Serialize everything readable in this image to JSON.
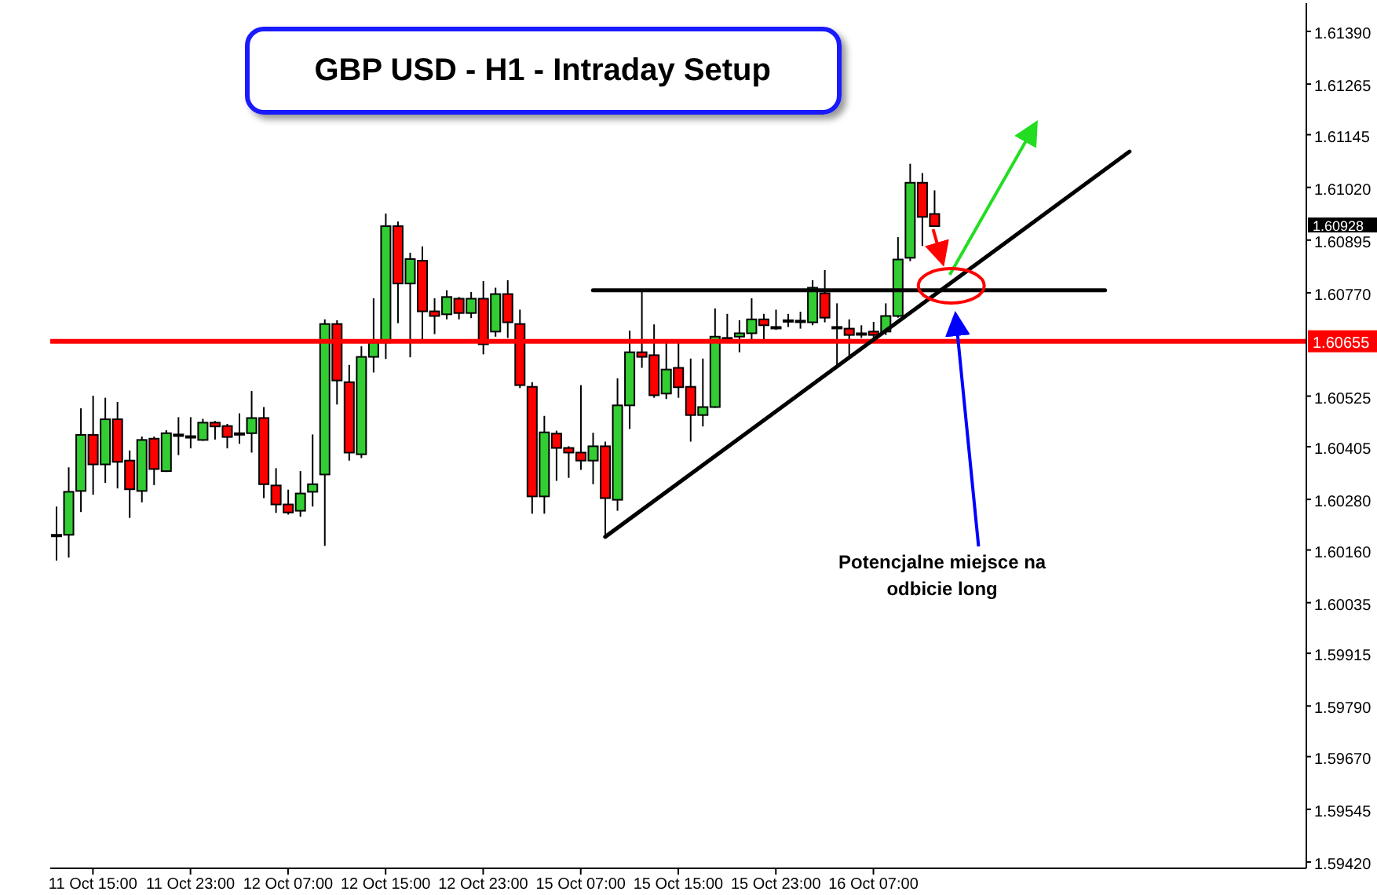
{
  "chart_data": {
    "type": "candlestick",
    "title": "GBP USD - H1 - Intraday Setup",
    "categories": [
      null,
      null,
      null,
      "11 Oct 15:00",
      null,
      null,
      null,
      null,
      null,
      null,
      null,
      "11 Oct 23:00",
      null,
      null,
      null,
      null,
      null,
      null,
      null,
      "12 Oct 07:00",
      null,
      null,
      null,
      null,
      null,
      null,
      null,
      "12 Oct 15:00",
      null,
      null,
      null,
      null,
      null,
      null,
      null,
      "12 Oct 23:00",
      null,
      null,
      null,
      null,
      null,
      null,
      null,
      "15 Oct 07:00",
      null,
      null,
      null,
      null,
      null,
      null,
      null,
      "15 Oct 15:00",
      null,
      null,
      null,
      null,
      null,
      null,
      null,
      "15 Oct 23:00",
      null,
      null,
      null,
      null,
      null,
      null,
      null,
      "16 Oct 07:00",
      null,
      null,
      null,
      null,
      null,
      null,
      null,
      null,
      null,
      null,
      null,
      null,
      null,
      null,
      null,
      null,
      null,
      null,
      null,
      null,
      null,
      null,
      null,
      null,
      null,
      null,
      null,
      null,
      null,
      null,
      null,
      null,
      null,
      null,
      null
    ],
    "ohlc": [
      [
        1.60196,
        1.60263,
        1.60135,
        1.60196
      ],
      [
        1.60196,
        1.60356,
        1.60142,
        1.60298
      ],
      [
        1.603,
        1.60496,
        1.6025,
        1.60433
      ],
      [
        1.60433,
        1.60526,
        1.60291,
        1.60363
      ],
      [
        1.60363,
        1.60521,
        1.60319,
        1.6047
      ],
      [
        1.6047,
        1.60511,
        1.60306,
        1.60369
      ],
      [
        1.60372,
        1.60396,
        1.60236,
        1.60304
      ],
      [
        1.603,
        1.60429,
        1.60273,
        1.60421
      ],
      [
        1.60424,
        1.60429,
        1.60314,
        1.60352
      ],
      [
        1.60347,
        1.60444,
        1.60345,
        1.60437
      ],
      [
        1.60434,
        1.60475,
        1.60385,
        1.60434
      ],
      [
        1.6043,
        1.60475,
        1.60401,
        1.6043
      ],
      [
        1.60421,
        1.60471,
        1.60419,
        1.60462
      ],
      [
        1.60462,
        1.60466,
        1.60422,
        1.60453
      ],
      [
        1.60454,
        1.60459,
        1.60401,
        1.60428
      ],
      [
        1.60437,
        1.60484,
        1.60412,
        1.60437
      ],
      [
        1.60437,
        1.60537,
        1.60391,
        1.60473
      ],
      [
        1.60473,
        1.60499,
        1.60283,
        1.60316
      ],
      [
        1.60313,
        1.60354,
        1.60248,
        1.60268
      ],
      [
        1.60268,
        1.60303,
        1.60244,
        1.60249
      ],
      [
        1.60253,
        1.60347,
        1.60239,
        1.60294
      ],
      [
        1.60298,
        1.60434,
        1.60263,
        1.60316
      ],
      [
        1.60339,
        1.60707,
        1.6017,
        1.60696
      ],
      [
        1.60696,
        1.60705,
        1.60505,
        1.60562
      ],
      [
        1.60558,
        1.60599,
        1.60372,
        1.60391
      ],
      [
        1.60387,
        1.60643,
        1.60378,
        1.60618
      ],
      [
        1.60618,
        1.60757,
        1.60581,
        1.60652
      ],
      [
        1.60652,
        1.60958,
        1.60613,
        1.60928
      ],
      [
        1.60928,
        1.60939,
        1.60698,
        1.60792
      ],
      [
        1.60792,
        1.60865,
        1.60617,
        1.6085
      ],
      [
        1.60846,
        1.6088,
        1.60652,
        1.60726
      ],
      [
        1.60726,
        1.60757,
        1.60672,
        1.60715
      ],
      [
        1.60719,
        1.60776,
        1.60707,
        1.6076
      ],
      [
        1.60756,
        1.6076,
        1.60707,
        1.60722
      ],
      [
        1.60722,
        1.60772,
        1.6071,
        1.60756
      ],
      [
        1.60756,
        1.60798,
        1.60624,
        1.60648
      ],
      [
        1.60678,
        1.60782,
        1.60666,
        1.60767
      ],
      [
        1.60767,
        1.608,
        1.60663,
        1.607
      ],
      [
        1.60696,
        1.6073,
        1.60544,
        1.60551
      ],
      [
        1.60547,
        1.60558,
        1.60246,
        1.60287
      ],
      [
        1.60287,
        1.60478,
        1.60246,
        1.60439
      ],
      [
        1.60436,
        1.60443,
        1.60324,
        1.60402
      ],
      [
        1.60402,
        1.60406,
        1.60331,
        1.60391
      ],
      [
        1.60391,
        1.60551,
        1.6035,
        1.60372
      ],
      [
        1.60372,
        1.60438,
        1.60316,
        1.60406
      ],
      [
        1.60406,
        1.60417,
        1.6019,
        1.60283
      ],
      [
        1.60279,
        1.60567,
        1.60253,
        1.60503
      ],
      [
        1.60503,
        1.6068,
        1.60447,
        1.60629
      ],
      [
        1.60629,
        1.60773,
        1.60592,
        1.60618
      ],
      [
        1.60622,
        1.60695,
        1.60521,
        1.60527
      ],
      [
        1.60531,
        1.60656,
        1.60518,
        1.60588
      ],
      [
        1.60592,
        1.6066,
        1.60521,
        1.60546
      ],
      [
        1.60547,
        1.60614,
        1.60417,
        1.6048
      ],
      [
        1.6048,
        1.60614,
        1.60453,
        1.60499
      ],
      [
        1.60499,
        1.60733,
        1.60497,
        1.60666
      ],
      [
        1.60663,
        1.6072,
        1.60653,
        1.60663
      ],
      [
        1.60666,
        1.60705,
        1.60629,
        1.60674
      ],
      [
        1.60674,
        1.60757,
        1.60658,
        1.60707
      ],
      [
        1.60707,
        1.6072,
        1.60653,
        1.60693
      ],
      [
        1.60689,
        1.6073,
        1.60682,
        1.60689
      ],
      [
        1.60705,
        1.6072,
        1.60689,
        1.60705
      ],
      [
        1.60704,
        1.60725,
        1.60685,
        1.60704
      ],
      [
        1.607,
        1.608,
        1.60693,
        1.60782
      ],
      [
        1.60769,
        1.60824,
        1.607,
        1.60711
      ],
      [
        1.60689,
        1.60745,
        1.60593,
        1.60689
      ],
      [
        1.60685,
        1.60707,
        1.6062,
        1.6067
      ],
      [
        1.60674,
        1.60693,
        1.60663,
        1.60674
      ],
      [
        1.60678,
        1.60701,
        1.60663,
        1.6067
      ],
      [
        1.60678,
        1.60745,
        1.6067,
        1.60715
      ],
      [
        1.60715,
        1.60902,
        1.60711,
        1.60849
      ],
      [
        1.60853,
        1.61076,
        1.60845,
        1.61031
      ],
      [
        1.61031,
        1.61054,
        1.60881,
        1.6095
      ],
      [
        1.60957,
        1.61013,
        1.60928,
        1.60928
      ],
      null,
      null,
      null,
      null,
      null,
      null,
      null,
      null,
      null,
      null,
      null,
      null,
      null,
      null,
      null,
      null,
      null,
      null,
      null,
      null,
      null,
      null,
      null,
      null,
      null,
      null,
      null,
      null,
      null,
      null
    ],
    "colors": [
      "#000000",
      "#32cd32",
      "#32cd32",
      "#ff0000",
      "#32cd32",
      "#ff0000",
      "#ff0000",
      "#32cd32",
      "#ff0000",
      "#32cd32",
      "#000000",
      "#000000",
      "#32cd32",
      "#ff0000",
      "#ff0000",
      "#000000",
      "#32cd32",
      "#ff0000",
      "#ff0000",
      "#ff0000",
      "#32cd32",
      "#32cd32",
      "#32cd32",
      "#ff0000",
      "#ff0000",
      "#32cd32",
      "#32cd32",
      "#32cd32",
      "#ff0000",
      "#32cd32",
      "#ff0000",
      "#ff0000",
      "#32cd32",
      "#ff0000",
      "#32cd32",
      "#ff0000",
      "#32cd32",
      "#ff0000",
      "#ff0000",
      "#ff0000",
      "#32cd32",
      "#ff0000",
      "#ff0000",
      "#ff0000",
      "#32cd32",
      "#ff0000",
      "#32cd32",
      "#32cd32",
      "#ff0000",
      "#ff0000",
      "#32cd32",
      "#ff0000",
      "#ff0000",
      "#32cd32",
      "#32cd32",
      "#000000",
      "#32cd32",
      "#32cd32",
      "#ff0000",
      "#000000",
      "#000000",
      "#000000",
      "#32cd32",
      "#ff0000",
      "#000000",
      "#ff0000",
      "#000000",
      "#ff0000",
      "#32cd32",
      "#32cd32",
      "#32cd32",
      "#ff0000",
      "#ff0000",
      null,
      null,
      null,
      null,
      null,
      null,
      null,
      null,
      null,
      null,
      null,
      null,
      null,
      null,
      null,
      null,
      null,
      null,
      null,
      null,
      null,
      null,
      null,
      null,
      null,
      null,
      null,
      null,
      null,
      null
    ],
    "series": [
      {
        "type": "line",
        "color": "#000000",
        "values": [
          null,
          null,
          null,
          null,
          null,
          null,
          null,
          null,
          null,
          null,
          null,
          null,
          null,
          null,
          null,
          null,
          null,
          null,
          null,
          null,
          null,
          null,
          null,
          null,
          null,
          null,
          null,
          null,
          null,
          null,
          null,
          null,
          null,
          null,
          null,
          null,
          null,
          null,
          null,
          null,
          null,
          null,
          null,
          null,
          null,
          1.60191,
          null,
          null,
          null,
          null,
          null,
          null,
          null,
          null,
          null,
          null,
          null,
          null,
          null,
          null,
          null,
          null,
          null,
          null,
          null,
          null,
          null,
          null,
          null,
          null,
          null,
          null,
          null,
          null,
          null,
          null,
          null,
          null,
          null,
          null,
          null,
          null,
          null,
          null,
          null,
          null,
          null,
          null,
          1.61105,
          null,
          null,
          null,
          null,
          null,
          null,
          null,
          null,
          null,
          null,
          null,
          null,
          null,
          null
        ]
      },
      {
        "type": "line",
        "color": "#000000",
        "values": [
          null,
          null,
          null,
          null,
          null,
          null,
          null,
          null,
          null,
          null,
          null,
          null,
          null,
          null,
          null,
          null,
          null,
          null,
          null,
          null,
          null,
          null,
          null,
          null,
          null,
          null,
          null,
          null,
          null,
          null,
          null,
          null,
          null,
          null,
          null,
          null,
          null,
          null,
          null,
          null,
          null,
          null,
          null,
          null,
          1.60776,
          null,
          null,
          null,
          null,
          null,
          null,
          null,
          null,
          null,
          null,
          null,
          null,
          null,
          null,
          null,
          null,
          null,
          null,
          null,
          null,
          null,
          null,
          null,
          null,
          null,
          null,
          null,
          null,
          null,
          null,
          null,
          null,
          null,
          null,
          null,
          null,
          null,
          null,
          null,
          null,
          null,
          1.60776,
          null,
          null,
          null,
          null,
          null,
          null,
          null,
          null,
          null,
          null,
          null,
          null,
          null,
          null,
          null,
          null
        ]
      }
    ],
    "ylim": [
      1.59405,
      1.61457
    ],
    "yticks": [
      {
        "value": 1.6139,
        "label": "1.61390"
      },
      {
        "value": 1.61265,
        "label": "1.61265"
      },
      {
        "value": 1.61145,
        "label": "1.61145"
      },
      {
        "value": 1.6102,
        "label": "1.61020"
      },
      {
        "value": 1.60895,
        "label": "1.60895"
      },
      {
        "value": 1.6077,
        "label": "1.60770"
      },
      {
        "value": 1.60525,
        "label": "1.60525"
      },
      {
        "value": 1.60405,
        "label": "1.60405"
      },
      {
        "value": 1.6028,
        "label": "1.60280"
      },
      {
        "value": 1.6016,
        "label": "1.60160"
      },
      {
        "value": 1.60035,
        "label": "1.60035"
      },
      {
        "value": 1.59915,
        "label": "1.59915"
      },
      {
        "value": 1.5979,
        "label": "1.59790"
      },
      {
        "value": 1.5967,
        "label": "1.59670"
      },
      {
        "value": 1.59545,
        "label": "1.59545"
      },
      {
        "value": 1.5942,
        "label": "1.59420"
      }
    ],
    "ref_lines": [
      {
        "axis": "y",
        "value": 1.60655,
        "label": "1.60655",
        "color": "#ff0000"
      }
    ],
    "annotations": [
      "Potencjalne miejsce na odbicie long",
      "1.60928"
    ]
  }
}
